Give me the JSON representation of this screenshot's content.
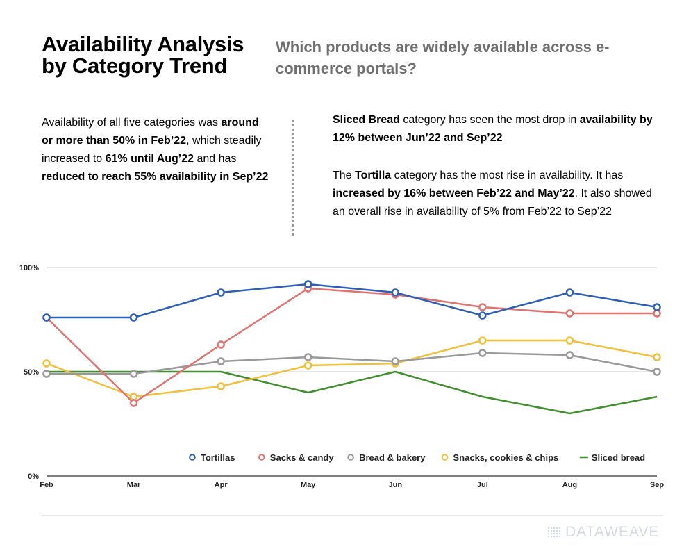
{
  "header": {
    "title": "Availability Analysis by Category Trend",
    "subtitle": "Which products are widely available across e-commerce portals?"
  },
  "insights": {
    "left": [
      {
        "text": "Availability of all five categories was ",
        "bold": false
      },
      {
        "text": "around or more than 50% in Feb’22",
        "bold": true
      },
      {
        "text": ", which steadily increased to ",
        "bold": false
      },
      {
        "text": "61% until Aug’22",
        "bold": true
      },
      {
        "text": " and has ",
        "bold": false
      },
      {
        "text": "reduced to reach 55% availability in Sep’22",
        "bold": true
      }
    ],
    "right_1": [
      {
        "text": "Sliced Bread",
        "bold": true
      },
      {
        "text": " category has seen the most drop in ",
        "bold": false
      },
      {
        "text": "availability by 12% between Jun’22 and Sep’22",
        "bold": true
      }
    ],
    "right_2": [
      {
        "text": "The ",
        "bold": false
      },
      {
        "text": "Tortilla",
        "bold": true
      },
      {
        "text": " category has the most rise in availability. It has ",
        "bold": false
      },
      {
        "text": "increased by 16% between Feb’22 and May’22",
        "bold": true
      },
      {
        "text": ". It also showed an overall rise in availability of 5% from Feb’22 to Sep’22",
        "bold": false
      }
    ]
  },
  "chart_data": {
    "type": "line",
    "categories": [
      "Feb",
      "Mar",
      "Apr",
      "May",
      "Jun",
      "Jul",
      "Aug",
      "Sep"
    ],
    "ylim": [
      0,
      100
    ],
    "yticks": [
      0,
      50,
      100
    ],
    "ytick_labels": [
      "0%",
      "50%",
      "100%"
    ],
    "grid": true,
    "legend_position": "bottom-right",
    "series": [
      {
        "name": "Tortillas",
        "color": "#2d5fb8",
        "markers": true,
        "values": [
          76,
          76,
          88,
          92,
          88,
          77,
          88,
          81
        ]
      },
      {
        "name": "Sacks & candy",
        "color": "#e07370",
        "markers": true,
        "values": [
          76,
          35,
          63,
          90,
          87,
          81,
          78,
          78
        ]
      },
      {
        "name": "Bread & bakery",
        "color": "#999999",
        "markers": true,
        "values": [
          49,
          49,
          55,
          57,
          55,
          59,
          58,
          50
        ]
      },
      {
        "name": "Snacks, cookies & chips",
        "color": "#f0bf3c",
        "markers": true,
        "values": [
          54,
          38,
          43,
          53,
          54,
          65,
          65,
          57
        ]
      },
      {
        "name": "Sliced bread",
        "color": "#3f8f2c",
        "markers": false,
        "values": [
          50,
          50,
          50,
          40,
          50,
          38,
          30,
          38
        ]
      }
    ]
  },
  "branding": {
    "logo_text": "DATAWEAVE",
    "logo_color": "#d4dbe4"
  }
}
